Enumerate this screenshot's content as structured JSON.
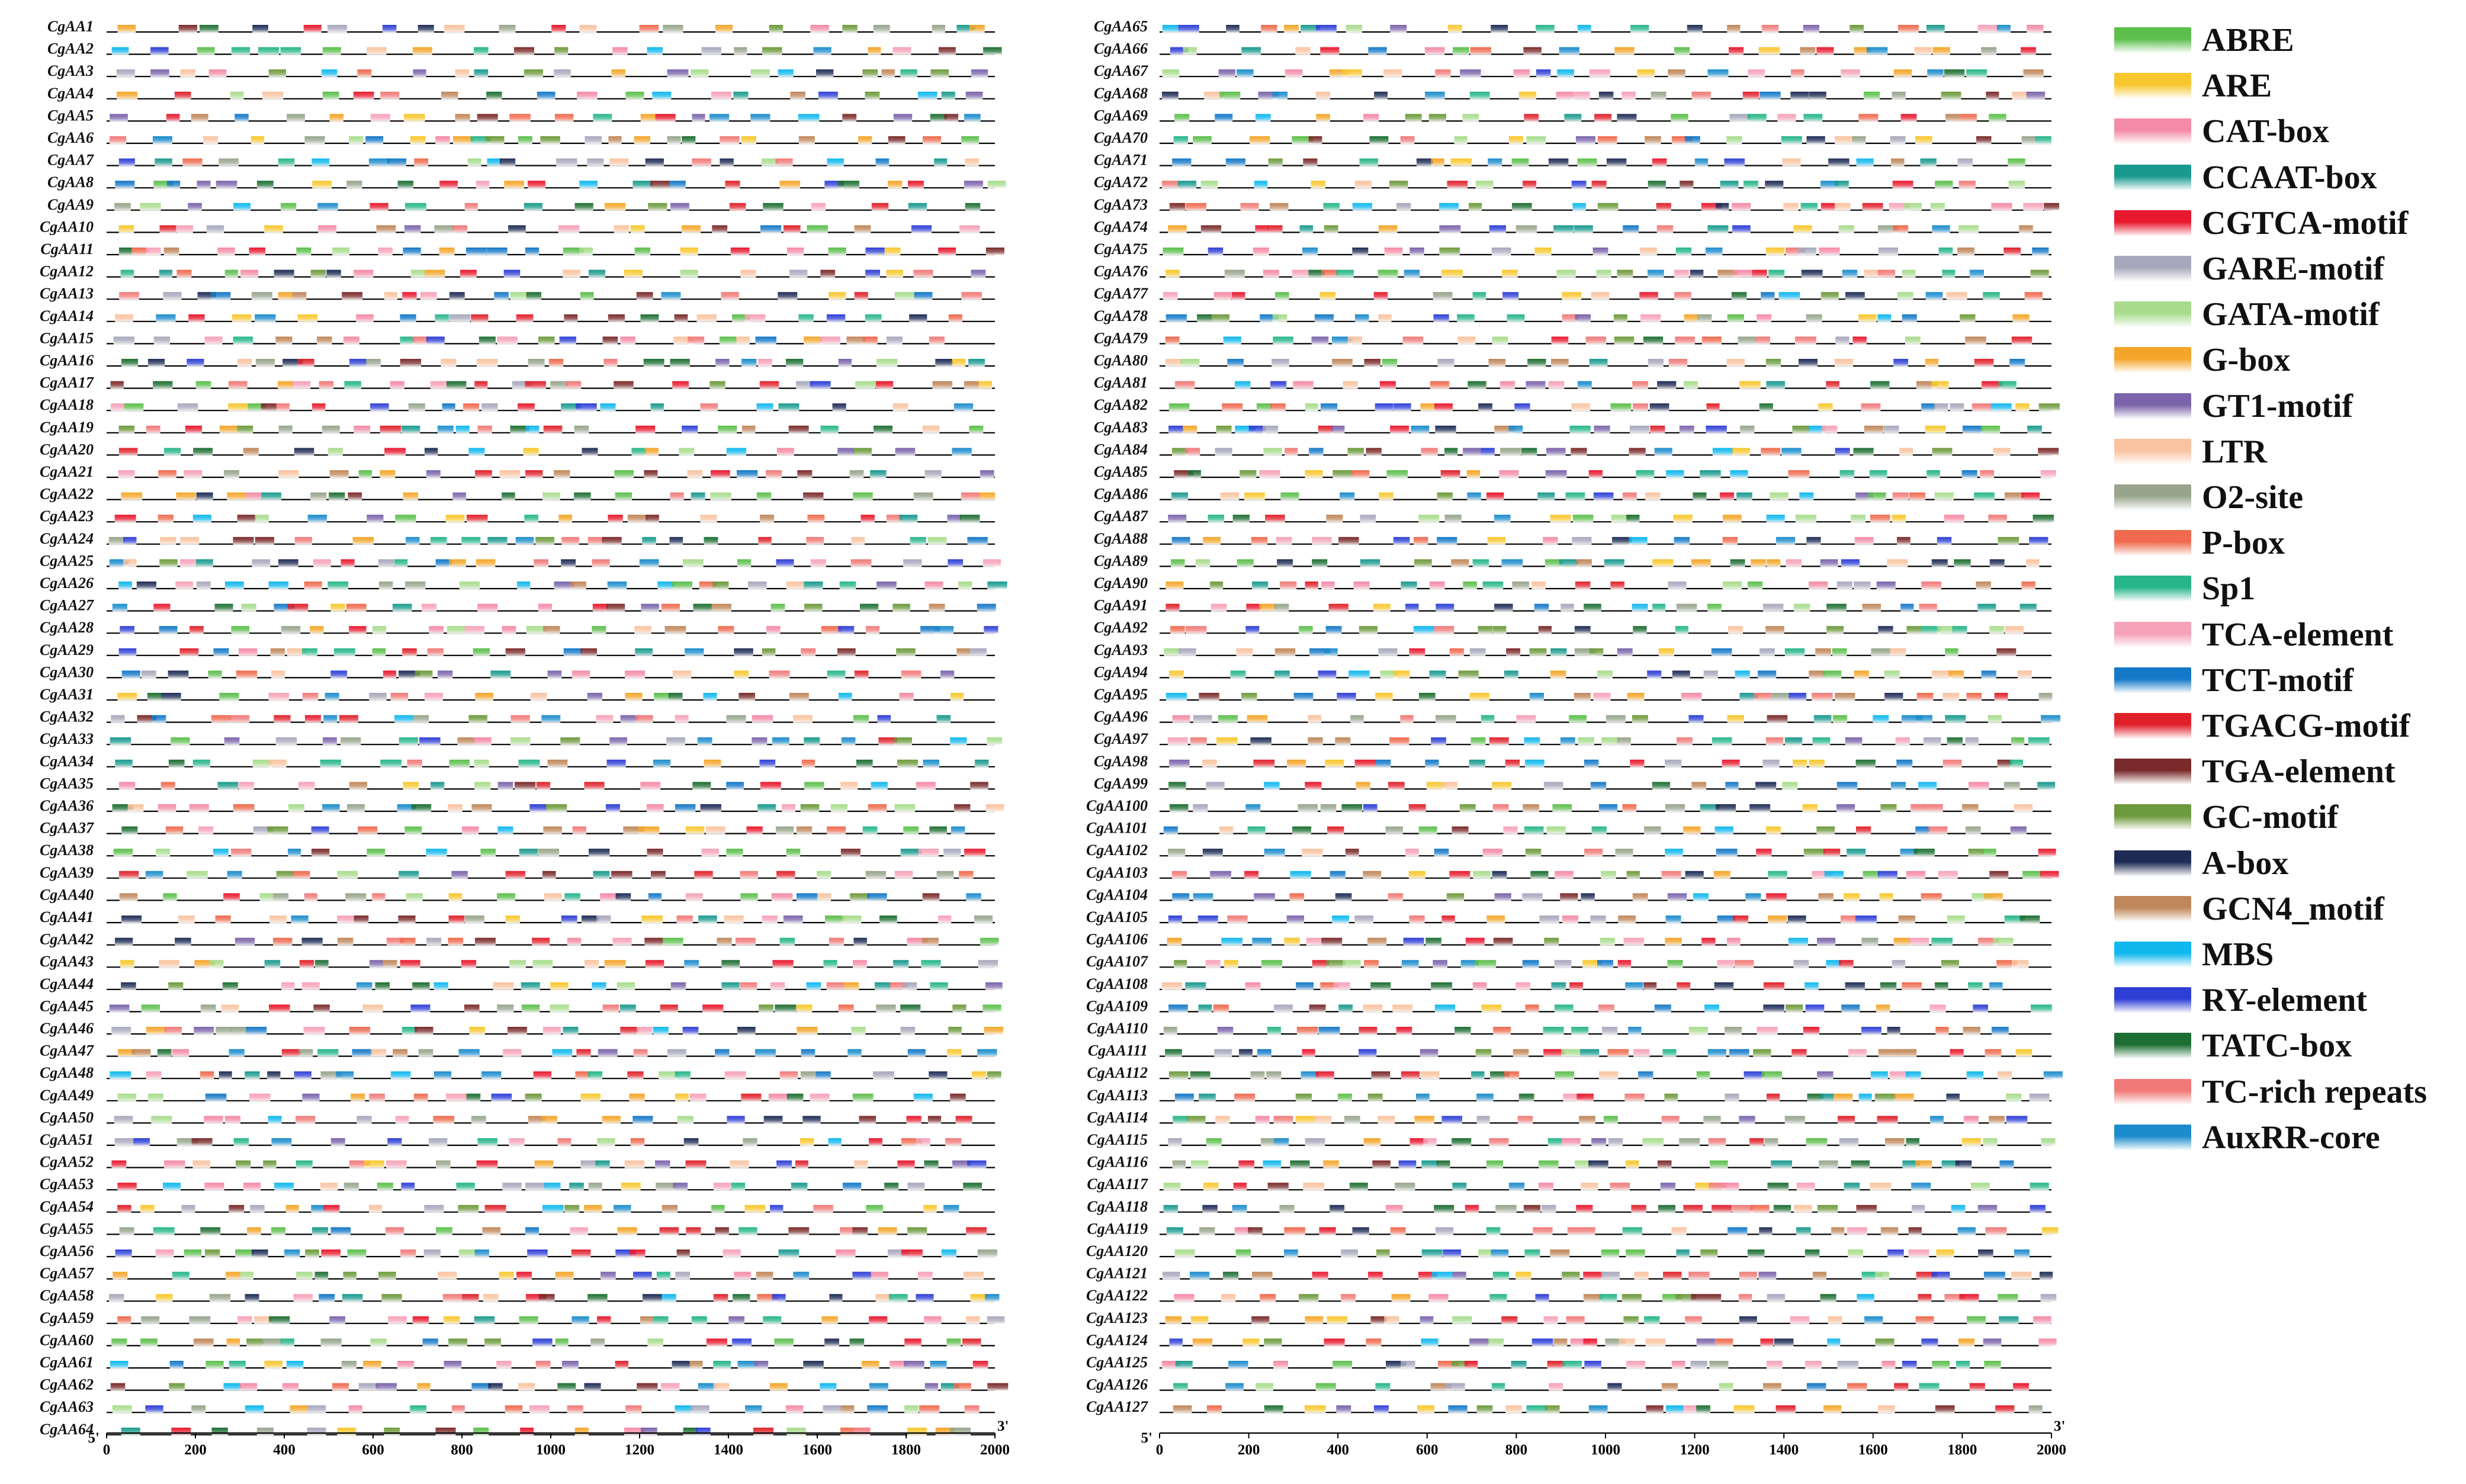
{
  "chart_data": {
    "type": "diagram",
    "description_type": "cis-acting element distribution along promoter regions",
    "panels": [
      {
        "genes": [
          "CgAA1",
          "CgAA2",
          "CgAA3",
          "CgAA4",
          "CgAA5",
          "CgAA6",
          "CgAA7",
          "CgAA8",
          "CgAA9",
          "CgAA10",
          "CgAA11",
          "CgAA12",
          "CgAA13",
          "CgAA14",
          "CgAA15",
          "CgAA16",
          "CgAA17",
          "CgAA18",
          "CgAA19",
          "CgAA20",
          "CgAA21",
          "CgAA22",
          "CgAA23",
          "CgAA24",
          "CgAA25",
          "CgAA26",
          "CgAA27",
          "CgAA28",
          "CgAA29",
          "CgAA30",
          "CgAA31",
          "CgAA32",
          "CgAA33",
          "CgAA34",
          "CgAA35",
          "CgAA36",
          "CgAA37",
          "CgAA38",
          "CgAA39",
          "CgAA40",
          "CgAA41",
          "CgAA42",
          "CgAA43",
          "CgAA44",
          "CgAA45",
          "CgAA46",
          "CgAA47",
          "CgAA48",
          "CgAA49",
          "CgAA50",
          "CgAA51",
          "CgAA52",
          "CgAA53",
          "CgAA54",
          "CgAA55",
          "CgAA56",
          "CgAA57",
          "CgAA58",
          "CgAA59",
          "CgAA60",
          "CgAA61",
          "CgAA62",
          "CgAA63",
          "CgAA64"
        ],
        "x_ticks": [
          "0",
          "200",
          "400",
          "600",
          "800",
          "1000",
          "1200",
          "1400",
          "1600",
          "1800",
          "2000"
        ],
        "start_label": "5'",
        "end_label": "3'",
        "xlim": [
          0,
          2000
        ]
      },
      {
        "genes": [
          "CgAA65",
          "CgAA66",
          "CgAA67",
          "CgAA68",
          "CgAA69",
          "CgAA70",
          "CgAA71",
          "CgAA72",
          "CgAA73",
          "CgAA74",
          "CgAA75",
          "CgAA76",
          "CgAA77",
          "CgAA78",
          "CgAA79",
          "CgAA80",
          "CgAA81",
          "CgAA82",
          "CgAA83",
          "CgAA84",
          "CgAA85",
          "CgAA86",
          "CgAA87",
          "CgAA88",
          "CgAA89",
          "CgAA90",
          "CgAA91",
          "CgAA92",
          "CgAA93",
          "CgAA94",
          "CgAA95",
          "CgAA96",
          "CgAA97",
          "CgAA98",
          "CgAA99",
          "CgAA100",
          "CgAA101",
          "CgAA102",
          "CgAA103",
          "CgAA104",
          "CgAA105",
          "CgAA106",
          "CgAA107",
          "CgAA108",
          "CgAA109",
          "CgAA110",
          "CgAA111",
          "CgAA112",
          "CgAA113",
          "CgAA114",
          "CgAA115",
          "CgAA116",
          "CgAA117",
          "CgAA118",
          "CgAA119",
          "CgAA120",
          "CgAA121",
          "CgAA122",
          "CgAA123",
          "CgAA124",
          "CgAA125",
          "CgAA126",
          "CgAA127"
        ],
        "x_ticks": [
          "0",
          "200",
          "400",
          "600",
          "800",
          "1000",
          "1200",
          "1400",
          "1600",
          "1800",
          "2000"
        ],
        "start_label": "5'",
        "end_label": "3'",
        "xlim": [
          0,
          2000
        ]
      }
    ],
    "legend": [
      {
        "label": "ABRE",
        "color": "#5cbf4c"
      },
      {
        "label": "ARE",
        "color": "#f8c72e"
      },
      {
        "label": "CAT-box",
        "color": "#f48ba6"
      },
      {
        "label": "CCAAT-box",
        "color": "#1a9a8e"
      },
      {
        "label": "CGTCA-motif",
        "color": "#e8192e"
      },
      {
        "label": "GARE-motif",
        "color": "#a8a8bd"
      },
      {
        "label": "GATA-motif",
        "color": "#a8dc8c"
      },
      {
        "label": "G-box",
        "color": "#f4a62a"
      },
      {
        "label": "GT1-motif",
        "color": "#7b64ab"
      },
      {
        "label": "LTR",
        "color": "#f9c3a0"
      },
      {
        "label": "O2-site",
        "color": "#97a58c"
      },
      {
        "label": "P-box",
        "color": "#ef6a4e"
      },
      {
        "label": "Sp1",
        "color": "#26b689"
      },
      {
        "label": "TCA-element",
        "color": "#f6a2b8"
      },
      {
        "label": "TCT-motif",
        "color": "#1478c8"
      },
      {
        "label": "TGACG-motif",
        "color": "#e0212b"
      },
      {
        "label": "TGA-element",
        "color": "#7a2a2a"
      },
      {
        "label": "GC-motif",
        "color": "#6d9a3c"
      },
      {
        "label": "A-box",
        "color": "#1e2c55"
      },
      {
        "label": "GCN4_motif",
        "color": "#c0875a"
      },
      {
        "label": "MBS",
        "color": "#10b8ee"
      },
      {
        "label": "RY-element",
        "color": "#2e3fd6"
      },
      {
        "label": "TATC-box",
        "color": "#1d6e32"
      },
      {
        "label": "TC-rich repeats",
        "color": "#f07a78"
      },
      {
        "label": "AuxRR-core",
        "color": "#1c8ccc"
      }
    ]
  }
}
